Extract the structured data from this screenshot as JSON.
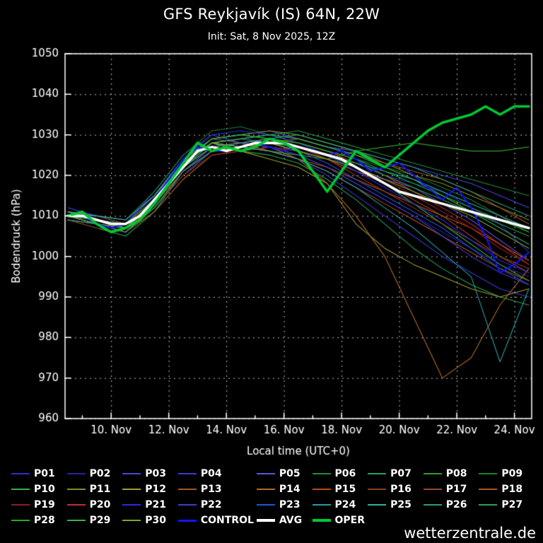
{
  "page": {
    "title": "GFS Reykjavík (IS) 64N, 22W",
    "subtitle": "Init: Sat, 8 Nov 2025, 12Z",
    "watermark": "wetterzentrale.de"
  },
  "chart_data": {
    "type": "line",
    "title": "GFS Reykjavík (IS) 64N, 22W",
    "subtitle": "Init: Sat, 8 Nov 2025, 12Z",
    "xlabel": "Local time (UTC+0)",
    "ylabel": "Bodendruck (hPa)",
    "ylim": [
      960,
      1050
    ],
    "xlim": [
      8.4,
      24.6
    ],
    "yticks": [
      960,
      970,
      980,
      990,
      1000,
      1010,
      1020,
      1030,
      1040,
      1050
    ],
    "xticks": [
      {
        "x": 10,
        "label": "10. Nov"
      },
      {
        "x": 12,
        "label": "12. Nov"
      },
      {
        "x": 14,
        "label": "14. Nov"
      },
      {
        "x": 16,
        "label": "16. Nov"
      },
      {
        "x": 18,
        "label": "18. Nov"
      },
      {
        "x": 20,
        "label": "20. Nov"
      },
      {
        "x": 22,
        "label": "22. Nov"
      },
      {
        "x": 24,
        "label": "24. Nov"
      }
    ],
    "grid": true,
    "legend_position": "bottom",
    "x_members": [
      8.5,
      9.5,
      10.5,
      11.5,
      12.5,
      13.5,
      14.5,
      15.5,
      16.5,
      17.5,
      18.5,
      19.5,
      20.5,
      21.5,
      22.5,
      23.5,
      24.5
    ],
    "x_main": [
      8.5,
      9,
      9.5,
      10,
      10.5,
      11,
      11.5,
      12,
      12.5,
      13,
      13.5,
      14,
      14.5,
      15,
      15.5,
      16,
      16.5,
      17,
      17.5,
      18,
      18.5,
      19,
      19.5,
      20,
      20.5,
      21,
      21.5,
      22,
      22.5,
      23,
      23.5,
      24,
      24.5
    ],
    "members": [
      {
        "name": "P01",
        "color": "#2d2dcf",
        "values": [
          1011,
          1009,
          1007,
          1013,
          1023,
          1028,
          1026,
          1029,
          1028,
          1026,
          1024,
          1020,
          1018,
          1016,
          1012,
          1008,
          1001
        ]
      },
      {
        "name": "P02",
        "color": "#2323a8",
        "values": [
          1009,
          1008,
          1006,
          1012,
          1021,
          1026,
          1028,
          1027,
          1025,
          1022,
          1018,
          1014,
          1010,
          1006,
          1002,
          998,
          995
        ]
      },
      {
        "name": "P03",
        "color": "#4444dd",
        "values": [
          1010,
          1010,
          1009,
          1015,
          1024,
          1029,
          1030,
          1031,
          1029,
          1027,
          1026,
          1024,
          1022,
          1020,
          1018,
          1015,
          1012
        ]
      },
      {
        "name": "P04",
        "color": "#3a3ad0",
        "values": [
          1012,
          1010,
          1008,
          1016,
          1025,
          1030,
          1028,
          1026,
          1024,
          1020,
          1015,
          1010,
          1005,
          1000,
          996,
          992,
          990
        ]
      },
      {
        "name": "P05",
        "color": "#5555e0",
        "values": [
          1010,
          1008,
          1006,
          1012,
          1020,
          1026,
          1027,
          1028,
          1026,
          1024,
          1021,
          1019,
          1017,
          1013,
          1009,
          1004,
          999
        ]
      },
      {
        "name": "P06",
        "color": "#1f8f3a",
        "values": [
          1011,
          1009,
          1008,
          1014,
          1023,
          1028,
          1029,
          1030,
          1031,
          1029,
          1027,
          1025,
          1023,
          1021,
          1019,
          1017,
          1015
        ]
      },
      {
        "name": "P07",
        "color": "#27a35a",
        "values": [
          1009,
          1007,
          1005,
          1011,
          1021,
          1027,
          1026,
          1025,
          1023,
          1019,
          1014,
          1008,
          1002,
          997,
          993,
          990,
          988
        ]
      },
      {
        "name": "P08",
        "color": "#2f9e2f",
        "values": [
          1010,
          1009,
          1008,
          1015,
          1024,
          1028,
          1027,
          1026,
          1025,
          1024,
          1026,
          1027,
          1028,
          1027,
          1026,
          1026,
          1027
        ]
      },
      {
        "name": "P09",
        "color": "#1d7f2f",
        "values": [
          1011,
          1010,
          1009,
          1016,
          1025,
          1031,
          1032,
          1030,
          1028,
          1026,
          1024,
          1022,
          1020,
          1017,
          1014,
          1010,
          1006
        ]
      },
      {
        "name": "P10",
        "color": "#33b04d",
        "values": [
          1010,
          1008,
          1007,
          1013,
          1022,
          1027,
          1028,
          1029,
          1027,
          1025,
          1022,
          1018,
          1013,
          1008,
          1003,
          998,
          994
        ]
      },
      {
        "name": "P11",
        "color": "#8a8a2a",
        "values": [
          1009,
          1008,
          1007,
          1014,
          1023,
          1029,
          1030,
          1031,
          1030,
          1028,
          1026,
          1023,
          1020,
          1018,
          1015,
          1012,
          1009
        ]
      },
      {
        "name": "P12",
        "color": "#a0a030",
        "values": [
          1010,
          1009,
          1008,
          1015,
          1023,
          1028,
          1026,
          1024,
          1022,
          1018,
          1008,
          1002,
          998,
          995,
          992,
          990,
          992
        ]
      },
      {
        "name": "P13",
        "color": "#a05a20",
        "values": [
          1011,
          1009,
          1007,
          1012,
          1021,
          1026,
          1027,
          1028,
          1029,
          1027,
          1025,
          1023,
          1021,
          1019,
          1016,
          1012,
          1008
        ]
      },
      {
        "name": "P14",
        "color": "#b06a28",
        "values": [
          1010,
          1008,
          1006,
          1011,
          1019,
          1025,
          1026,
          1027,
          1024,
          1018,
          1010,
          1000,
          985,
          970,
          975,
          988,
          997
        ]
      },
      {
        "name": "P15",
        "color": "#c04818",
        "values": [
          1009,
          1008,
          1006,
          1013,
          1022,
          1027,
          1028,
          1026,
          1024,
          1022,
          1019,
          1016,
          1013,
          1010,
          1007,
          1003,
          999
        ]
      },
      {
        "name": "P16",
        "color": "#8f3f1f",
        "values": [
          1010,
          1009,
          1007,
          1014,
          1023,
          1028,
          1029,
          1028,
          1027,
          1024,
          1020,
          1016,
          1012,
          1008,
          1004,
          1000,
          997
        ]
      },
      {
        "name": "P17",
        "color": "#9a4a22",
        "values": [
          1011,
          1010,
          1008,
          1015,
          1024,
          1029,
          1028,
          1027,
          1026,
          1024,
          1021,
          1018,
          1014,
          1010,
          1005,
          1000,
          996
        ]
      },
      {
        "name": "P18",
        "color": "#b0542a",
        "values": [
          1010,
          1008,
          1007,
          1013,
          1021,
          1026,
          1027,
          1026,
          1024,
          1021,
          1017,
          1013,
          1009,
          1005,
          1001,
          997,
          994
        ]
      },
      {
        "name": "P19",
        "color": "#8f1f1f",
        "values": [
          1009,
          1007,
          1006,
          1012,
          1020,
          1025,
          1026,
          1027,
          1026,
          1024,
          1022,
          1019,
          1015,
          1011,
          1007,
          1002,
          998
        ]
      },
      {
        "name": "P20",
        "color": "#c03030",
        "values": [
          1010,
          1009,
          1008,
          1014,
          1022,
          1027,
          1028,
          1029,
          1028,
          1026,
          1023,
          1020,
          1016,
          1012,
          1008,
          1003,
          998
        ]
      },
      {
        "name": "P21",
        "color": "#2a2ae0",
        "values": [
          1011,
          1009,
          1008,
          1015,
          1024,
          1030,
          1031,
          1030,
          1028,
          1025,
          1021,
          1017,
          1013,
          1009,
          1004,
          999,
          996
        ]
      },
      {
        "name": "P22",
        "color": "#3d3dcc",
        "values": [
          1010,
          1008,
          1006,
          1012,
          1021,
          1027,
          1028,
          1027,
          1025,
          1022,
          1018,
          1014,
          1010,
          1005,
          1000,
          996,
          993
        ]
      },
      {
        "name": "P23",
        "color": "#2255d5",
        "values": [
          1009,
          1008,
          1007,
          1013,
          1022,
          1028,
          1029,
          1028,
          1026,
          1023,
          1019,
          1015,
          1011,
          1007,
          1002,
          997,
          993
        ]
      },
      {
        "name": "P24",
        "color": "#2a9da0",
        "values": [
          1010,
          1009,
          1007,
          1014,
          1023,
          1028,
          1027,
          1026,
          1024,
          1021,
          1017,
          1012,
          1007,
          1001,
          995,
          974,
          992
        ]
      },
      {
        "name": "P25",
        "color": "#30b0a8",
        "values": [
          1011,
          1010,
          1009,
          1015,
          1024,
          1029,
          1030,
          1029,
          1027,
          1025,
          1023,
          1021,
          1019,
          1016,
          1013,
          1010,
          1007
        ]
      },
      {
        "name": "P26",
        "color": "#2a9d7a",
        "values": [
          1010,
          1008,
          1007,
          1013,
          1022,
          1027,
          1028,
          1029,
          1030,
          1028,
          1026,
          1024,
          1022,
          1019,
          1016,
          1013,
          1010
        ]
      },
      {
        "name": "P27",
        "color": "#2fa04f",
        "values": [
          1009,
          1008,
          1006,
          1012,
          1021,
          1026,
          1027,
          1028,
          1027,
          1025,
          1023,
          1020,
          1017,
          1014,
          1011,
          1008,
          1005
        ]
      },
      {
        "name": "P28",
        "color": "#28a828",
        "values": [
          1010,
          1009,
          1008,
          1014,
          1023,
          1029,
          1030,
          1029,
          1028,
          1026,
          1024,
          1021,
          1018,
          1015,
          1012,
          1009,
          1006
        ]
      },
      {
        "name": "P29",
        "color": "#37b057",
        "values": [
          1011,
          1009,
          1007,
          1013,
          1022,
          1028,
          1029,
          1030,
          1029,
          1027,
          1025,
          1022,
          1019,
          1015,
          1011,
          1007,
          1003
        ]
      },
      {
        "name": "P30",
        "color": "#7fa52f",
        "values": [
          1010,
          1008,
          1007,
          1014,
          1023,
          1028,
          1027,
          1028,
          1026,
          1024,
          1022,
          1019,
          1016,
          1013,
          1010,
          1006,
          1002
        ]
      }
    ],
    "control": {
      "name": "CONTROL",
      "color": "#1414ff",
      "values": [
        1010,
        1010,
        1008,
        1007,
        1008,
        1010,
        1014,
        1019,
        1024,
        1027,
        1026,
        1026,
        1027,
        1028,
        1027,
        1026,
        1027,
        1026,
        1025,
        1026,
        1024,
        1021,
        1022,
        1023,
        1020,
        1017,
        1014,
        1017,
        1012,
        1005,
        996,
        998,
        1001
      ]
    },
    "avg": {
      "name": "AVG",
      "color": "#ffffff",
      "values": [
        1010,
        1010,
        1009,
        1008,
        1008,
        1010,
        1014,
        1018,
        1022,
        1026,
        1027,
        1026,
        1027,
        1028,
        1028,
        1028,
        1027,
        1026,
        1025,
        1024,
        1022,
        1020,
        1018,
        1016,
        1015,
        1014,
        1013,
        1012,
        1011,
        1010,
        1009,
        1008,
        1007
      ]
    },
    "oper": {
      "name": "OPER",
      "color": "#00c832",
      "values": [
        1010,
        1011,
        1008,
        1006,
        1007,
        1009,
        1013,
        1018,
        1023,
        1028,
        1026,
        1027,
        1026,
        1027,
        1029,
        1028,
        1026,
        1021,
        1016,
        1021,
        1026,
        1024,
        1022,
        1025,
        1028,
        1031,
        1033,
        1034,
        1035,
        1037,
        1035,
        1037,
        1037
      ]
    }
  }
}
